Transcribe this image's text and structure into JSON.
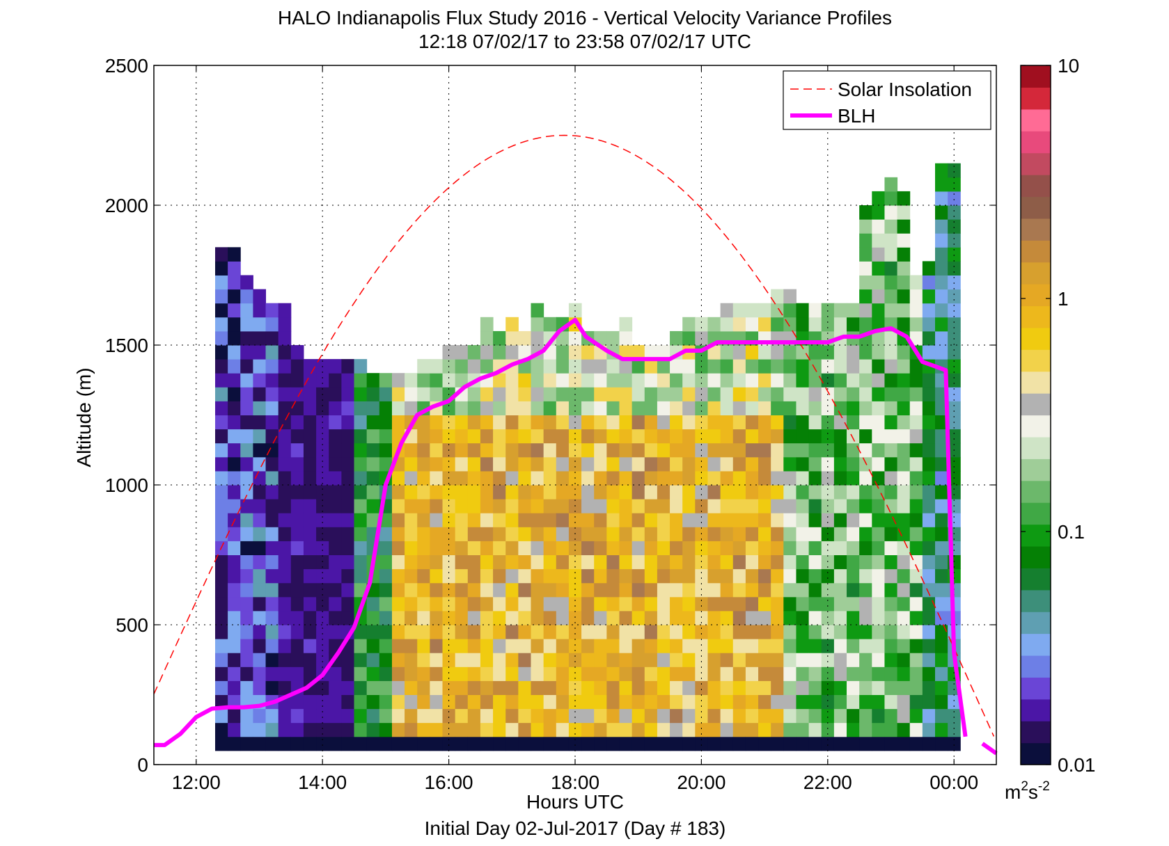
{
  "chart_data": {
    "type": "heatmap",
    "title": "HALO Indianapolis Flux Study 2016 - Vertical Velocity Variance Profiles",
    "subtitle": "12:18 07/02/17 to 23:58 07/02/17  UTC",
    "xlabel": "Hours UTC",
    "xlabel2": "Initial Day 02-Jul-2017 (Day # 183)",
    "ylabel": "Altitude (m)",
    "colorbar_unit": "m",
    "colorbar_unit_sup1": "2",
    "colorbar_unit_mid": "s",
    "colorbar_unit_sup2": "-2",
    "colorbar_scale": "log",
    "colorbar_range": [
      0.01,
      10
    ],
    "colorbar_ticks": [
      {
        "value": 0.01,
        "label": "0.01"
      },
      {
        "value": 0.1,
        "label": "0.1"
      },
      {
        "value": 1,
        "label": "1"
      },
      {
        "value": 10,
        "label": "10"
      }
    ],
    "colormap": [
      "#0b0f3c",
      "#2a0f5a",
      "#4b16a6",
      "#6a45d6",
      "#6d7fe6",
      "#7faaf0",
      "#5f9fb2",
      "#3d8f7a",
      "#157f2f",
      "#058005",
      "#0e9a12",
      "#40a845",
      "#6cb86b",
      "#9fcd98",
      "#cfe4c6",
      "#f2f2e8",
      "#b2b2b2",
      "#f1e2a6",
      "#f2d24a",
      "#f0cb10",
      "#edb81c",
      "#e5a824",
      "#d7a02e",
      "#c58a3a",
      "#a97850",
      "#8e5d48",
      "#94504a",
      "#c24a60",
      "#e84a7c",
      "#ff6b95",
      "#d4283a",
      "#a00f1f"
    ],
    "xlim": [
      11.33,
      24.67
    ],
    "ylim": [
      0,
      2500
    ],
    "x_ticks": [
      {
        "value": 12,
        "label": "12:00"
      },
      {
        "value": 14,
        "label": "14:00"
      },
      {
        "value": 16,
        "label": "16:00"
      },
      {
        "value": 18,
        "label": "18:00"
      },
      {
        "value": 20,
        "label": "20:00"
      },
      {
        "value": 22,
        "label": "22:00"
      },
      {
        "value": 24,
        "label": "00:00"
      }
    ],
    "y_ticks": [
      0,
      500,
      1000,
      1500,
      2000,
      2500
    ],
    "grid": true,
    "legend_position": "top-right",
    "legend": [
      {
        "name": "Solar Insolation",
        "style": "dashed",
        "color": "#ff0000"
      },
      {
        "name": "BLH",
        "style": "solid",
        "color": "#ff00ff"
      }
    ],
    "heatmap": {
      "time_start": 12.3,
      "time_step": 0.2,
      "n_cols": 59,
      "alt_bin": 50,
      "top_alt": [
        1850,
        1850,
        1750,
        1700,
        1650,
        1650,
        1500,
        1450,
        1450,
        1450,
        1450,
        1450,
        1400,
        1400,
        1400,
        1400,
        1450,
        1450,
        1500,
        1500,
        1500,
        1600,
        1550,
        1600,
        1550,
        1650,
        1600,
        1600,
        1650,
        1550,
        1550,
        1550,
        1600,
        1500,
        1500,
        1500,
        1550,
        1600,
        1600,
        1600,
        1650,
        1650,
        1650,
        1650,
        1700,
        1700,
        1650,
        1650,
        1650,
        1650,
        1650,
        2000,
        2050,
        2100,
        2050,
        1750,
        1800,
        2150,
        2150
      ]
    },
    "blh": {
      "x": [
        11.33,
        11.5,
        11.75,
        12.0,
        12.25,
        12.5,
        12.75,
        13.0,
        13.25,
        13.5,
        13.75,
        14.0,
        14.25,
        14.5,
        14.75,
        15.0,
        15.25,
        15.5,
        15.75,
        16.0,
        16.25,
        16.5,
        16.75,
        17.0,
        17.25,
        17.5,
        17.75,
        18.0,
        18.17,
        18.5,
        18.75,
        19.0,
        19.25,
        19.5,
        19.75,
        20.0,
        20.25,
        20.5,
        20.75,
        21.0,
        21.25,
        21.5,
        21.75,
        22.0,
        22.25,
        22.5,
        22.75,
        23.0,
        23.25,
        23.5,
        23.75,
        23.87,
        24.0,
        24.18
      ],
      "y": [
        70,
        70,
        110,
        170,
        200,
        205,
        205,
        210,
        225,
        250,
        275,
        320,
        400,
        490,
        650,
        1000,
        1150,
        1250,
        1280,
        1300,
        1350,
        1380,
        1400,
        1430,
        1450,
        1480,
        1550,
        1590,
        1530,
        1480,
        1450,
        1450,
        1450,
        1450,
        1480,
        1480,
        1510,
        1510,
        1510,
        1510,
        1510,
        1510,
        1510,
        1510,
        1530,
        1530,
        1550,
        1560,
        1530,
        1440,
        1420,
        1410,
        400,
        100
      ]
    },
    "blh_tail": {
      "x": [
        24.45,
        24.67
      ],
      "y": [
        75,
        40
      ]
    },
    "solar": {
      "type": "dashed curve",
      "peak_time": 17.83,
      "peak_alt": 2250,
      "half_width_hours": 7
    }
  }
}
